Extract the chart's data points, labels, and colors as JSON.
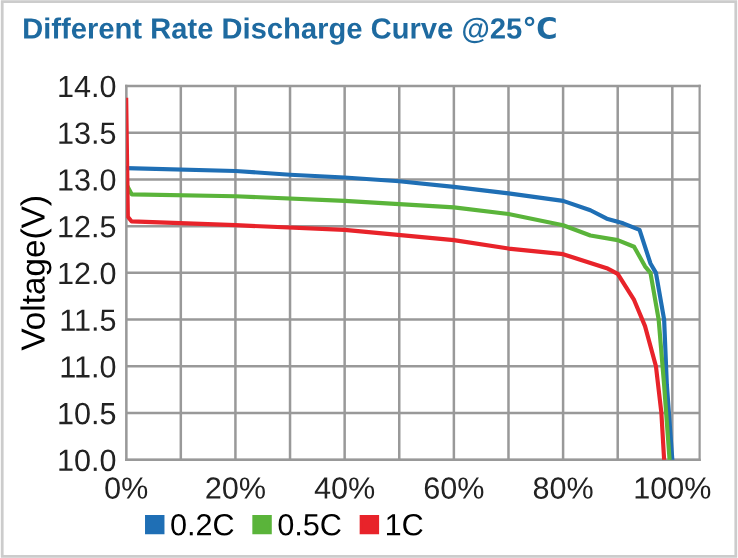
{
  "chart_data": {
    "type": "line",
    "title": "Different Rate Discharge Curve @25℃",
    "ylabel": "Voltage(V)",
    "xlim": [
      0,
      105
    ],
    "ylim": [
      10.0,
      14.0
    ],
    "xticks": [
      {
        "value": 0,
        "label": "0%"
      },
      {
        "value": 10,
        "label": null
      },
      {
        "value": 20,
        "label": "20%"
      },
      {
        "value": 30,
        "label": null
      },
      {
        "value": 40,
        "label": "40%"
      },
      {
        "value": 50,
        "label": null
      },
      {
        "value": 60,
        "label": "60%"
      },
      {
        "value": 70,
        "label": null
      },
      {
        "value": 80,
        "label": "80%"
      },
      {
        "value": 90,
        "label": null
      },
      {
        "value": 100,
        "label": "100%"
      }
    ],
    "yticks": [
      {
        "value": 10.0,
        "label": "10.0"
      },
      {
        "value": 10.5,
        "label": "10.5"
      },
      {
        "value": 11.0,
        "label": "11.0"
      },
      {
        "value": 11.5,
        "label": "11.5"
      },
      {
        "value": 12.0,
        "label": "12.0"
      },
      {
        "value": 12.5,
        "label": "12.5"
      },
      {
        "value": 13.0,
        "label": "13.0"
      },
      {
        "value": 13.5,
        "label": "13.5"
      },
      {
        "value": 14.0,
        "label": "14.0"
      }
    ],
    "grid": true,
    "legend": "bottom left",
    "marker": "none",
    "line_style": "solid",
    "series": [
      {
        "name": "0.2C",
        "color": "#1f6fb5",
        "x": [
          0,
          20,
          30,
          40,
          50,
          60,
          70,
          80,
          85,
          88,
          91,
          94,
          96,
          97,
          98.5,
          99,
          100
        ],
        "values": [
          13.12,
          13.09,
          13.05,
          13.02,
          12.98,
          12.92,
          12.85,
          12.77,
          12.67,
          12.58,
          12.53,
          12.46,
          12.1,
          12.0,
          11.5,
          10.8,
          10.0
        ]
      },
      {
        "name": "0.5C",
        "color": "#5ab43a",
        "x": [
          0,
          1,
          20,
          40,
          60,
          70,
          80,
          85,
          90,
          93,
          95,
          96,
          97.5,
          98.5,
          99.5
        ],
        "values": [
          12.95,
          12.84,
          12.82,
          12.77,
          12.7,
          12.63,
          12.51,
          12.4,
          12.35,
          12.28,
          12.07,
          12.0,
          11.5,
          10.8,
          10.0
        ]
      },
      {
        "name": "1C",
        "color": "#e8232a",
        "x": [
          0,
          0.3,
          1,
          20,
          40,
          60,
          70,
          80,
          88,
          90,
          93,
          95,
          97,
          98,
          98.5
        ],
        "values": [
          13.85,
          12.6,
          12.55,
          12.51,
          12.46,
          12.35,
          12.26,
          12.2,
          12.05,
          11.99,
          11.71,
          11.43,
          11.0,
          10.5,
          10.0
        ]
      }
    ]
  }
}
